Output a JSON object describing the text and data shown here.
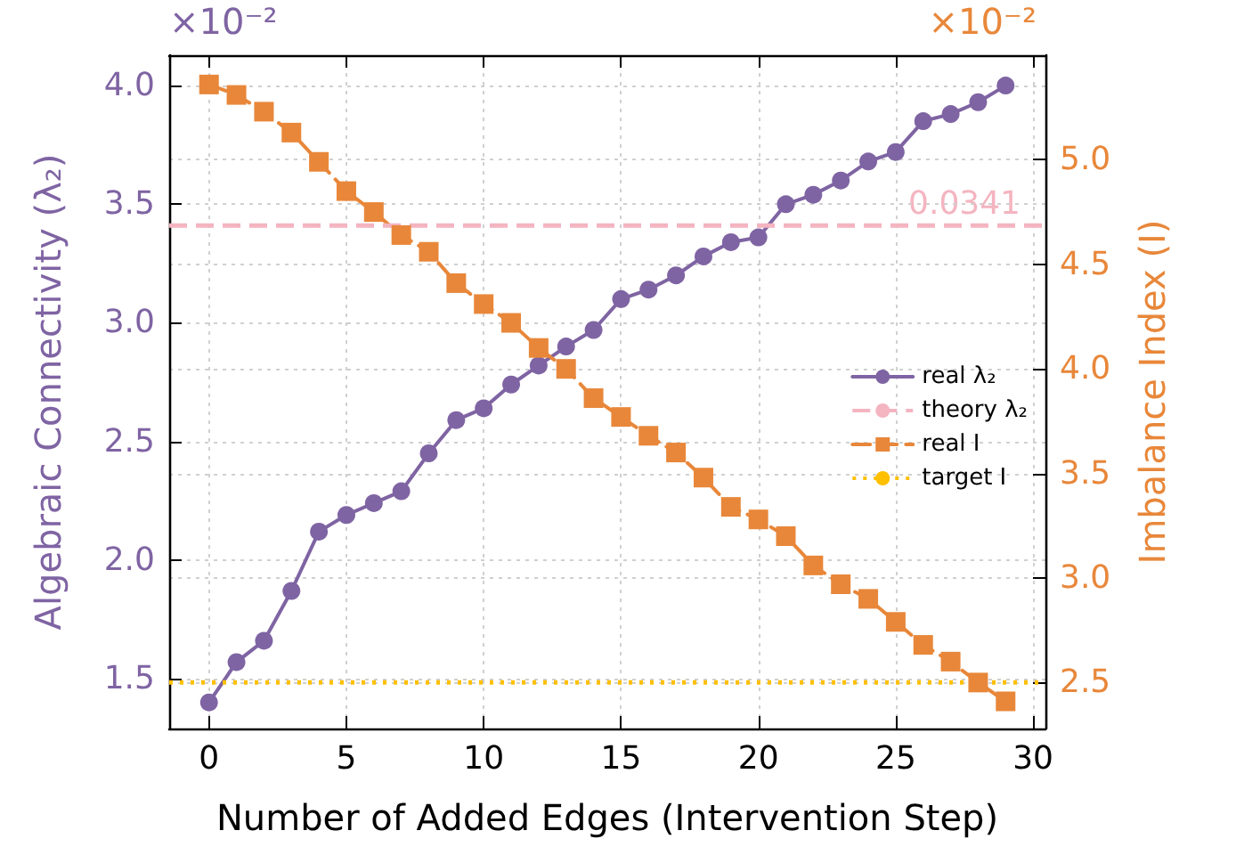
{
  "chart_data": {
    "type": "line",
    "xlabel": "Number of Added Edges (Intervention Step)",
    "ylabel": "Algebraic Connectivity (λ₂)",
    "y2label": "Imbalance Index (I)",
    "x": [
      0,
      1,
      2,
      3,
      4,
      5,
      6,
      7,
      8,
      9,
      10,
      11,
      12,
      13,
      14,
      15,
      16,
      17,
      18,
      19,
      20,
      21,
      22,
      23,
      24,
      25,
      26,
      27,
      28,
      29
    ],
    "series": [
      {
        "name": "real λ₂",
        "color": "#7f64a3",
        "marker": "circle",
        "line_style": "solid",
        "values": [
          1.4,
          1.57,
          1.66,
          1.87,
          2.12,
          2.19,
          2.24,
          2.29,
          2.45,
          2.59,
          2.64,
          2.74,
          2.82,
          2.9,
          2.97,
          3.1,
          3.14,
          3.2,
          3.28,
          3.34,
          3.36,
          3.5,
          3.54,
          3.6,
          3.68,
          3.72,
          3.85,
          3.88,
          3.93,
          4.0
        ]
      },
      {
        "name": "real I",
        "color": "#e8873a",
        "marker": "square",
        "line_style": "dashed",
        "axis": "y2",
        "values": [
          5.36,
          5.31,
          5.23,
          5.13,
          4.99,
          4.85,
          4.75,
          4.64,
          4.56,
          4.41,
          4.31,
          4.22,
          4.1,
          4.0,
          3.86,
          3.77,
          3.68,
          3.6,
          3.48,
          3.34,
          3.28,
          3.2,
          3.06,
          2.97,
          2.9,
          2.79,
          2.68,
          2.6,
          2.5,
          2.41
        ]
      }
    ],
    "ref_lines": [
      {
        "axis": "y",
        "value": 3.41,
        "label": "theory λ₂",
        "color": "#f4b4c0",
        "line_style": "dashed"
      },
      {
        "axis": "y2",
        "value": 2.5,
        "label": "target I",
        "color": "#ffc000",
        "line_style": "dotted"
      }
    ],
    "annotations": [
      "×10⁻²",
      "×10⁻²",
      {
        "text": "0.0341",
        "x": 27.5,
        "y": 3.41
      }
    ],
    "xlim": [
      -1.45,
      30.45
    ],
    "xticks": [
      0,
      5,
      10,
      15,
      20,
      25,
      30
    ],
    "ylim": [
      1.29,
      4.128
    ],
    "yticks": [
      1.5,
      {
        "value": 2,
        "label": "2.0"
      },
      2.5,
      {
        "value": 3,
        "label": "3.0"
      },
      3.5,
      {
        "value": 4,
        "label": "4.0"
      }
    ],
    "y2lim": [
      2.28,
      5.5
    ],
    "y2ticks": [
      2.5,
      {
        "value": 3,
        "label": "3.0"
      },
      3.5,
      {
        "value": 4,
        "label": "4.0"
      },
      4.5,
      {
        "value": 5,
        "label": "5.0"
      }
    ],
    "grid": true,
    "legend": "right"
  }
}
